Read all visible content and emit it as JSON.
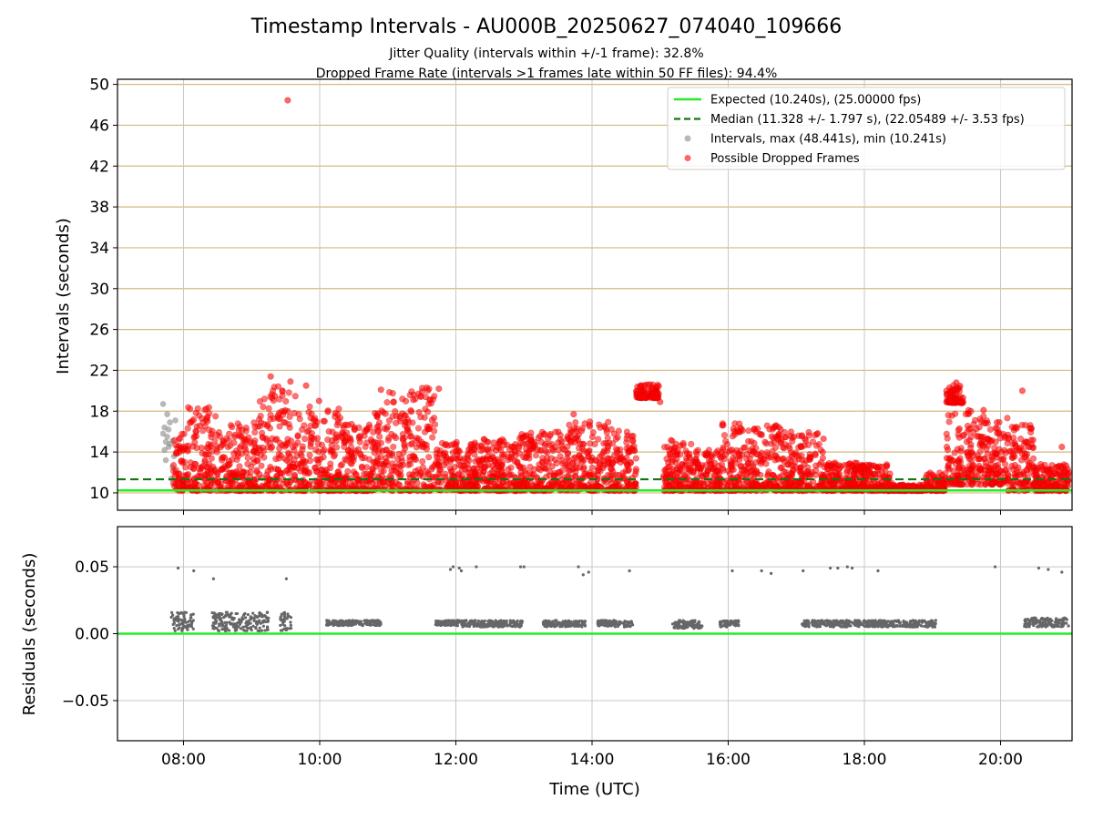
{
  "chart_data": {
    "title": "Timestamp Intervals - AU000B_20250627_074040_109666",
    "subtitles": [
      "Jitter Quality (intervals within +/-1 frame): 32.8%",
      "Dropped Frame Rate (intervals >1 frames late within 50 FF files): 94.4%"
    ],
    "panels": [
      {
        "type": "scatter",
        "ylabel": "Intervals (seconds)",
        "ylim": [
          8.3,
          50.5
        ],
        "yticks": [
          10,
          14,
          18,
          22,
          26,
          30,
          34,
          38,
          42,
          46,
          50
        ],
        "grid": true,
        "hlines_color": "#d4b97a",
        "series": [
          {
            "kind": "line",
            "value": 10.24,
            "color": "#22ee22"
          },
          {
            "kind": "dashed-line",
            "value": 11.328,
            "color": "#117711"
          },
          {
            "kind": "points",
            "color": "#888888",
            "points": [
              [
                7.7,
                18.7
              ],
              [
                7.72,
                16.4
              ],
              [
                7.74,
                15.0
              ],
              [
                7.76,
                17.7
              ],
              [
                7.78,
                16.2
              ],
              [
                7.8,
                14.8
              ],
              [
                7.72,
                14.2
              ],
              [
                7.76,
                15.5
              ],
              [
                7.8,
                16.9
              ],
              [
                7.84,
                15.1
              ],
              [
                7.86,
                13.6
              ],
              [
                7.82,
                11.4
              ],
              [
                7.88,
                17.1
              ],
              [
                7.74,
                13.2
              ],
              [
                7.78,
                14.5
              ],
              [
                7.84,
                12.5
              ],
              [
                7.9,
                10.4
              ],
              [
                7.7,
                15.8
              ],
              [
                18.35,
                10.3
              ],
              [
                18.7,
                10.4
              ]
            ]
          },
          {
            "kind": "points",
            "color": "#ff0000",
            "points": [
              [
                9.53,
                48.44
              ],
              [
                9.28,
                21.4
              ],
              [
                9.57,
                20.9
              ],
              [
                9.34,
                19.5
              ],
              [
                10.9,
                20.1
              ],
              [
                11.75,
                20.2
              ],
              [
                14.72,
                20.5
              ],
              [
                14.85,
                20.6
              ],
              [
                14.95,
                20.4
              ],
              [
                19.25,
                20.3
              ],
              [
                19.35,
                20.8
              ],
              [
                20.32,
                20.0
              ],
              [
                9.8,
                20.5
              ],
              [
                9.99,
                19.0
              ],
              [
                10.23,
                17.8
              ],
              [
                13.73,
                17.7
              ],
              [
                15.0,
                18.9
              ],
              [
                16.38,
                16.2
              ],
              [
                16.7,
                16.6
              ],
              [
                17.4,
                15.3
              ],
              [
                19.45,
                18.9
              ],
              [
                19.75,
                18.1
              ],
              [
                20.45,
                16.3
              ],
              [
                20.9,
                14.5
              ]
            ],
            "clusters": [
              [
                7.85,
                8.05,
                10.2,
                15.8
              ],
              [
                8.05,
                8.5,
                10.2,
                18.5
              ],
              [
                8.5,
                9.1,
                10.2,
                16.9
              ],
              [
                9.1,
                9.4,
                10.2,
                21.2
              ],
              [
                9.4,
                9.65,
                10.2,
                20.5
              ],
              [
                9.65,
                10.4,
                10.2,
                18.5
              ],
              [
                10.4,
                10.8,
                10.2,
                16.8
              ],
              [
                10.8,
                11.3,
                10.2,
                19.9
              ],
              [
                11.3,
                11.7,
                10.2,
                20.3
              ],
              [
                11.7,
                12.3,
                10.2,
                15.0
              ],
              [
                12.3,
                12.9,
                10.2,
                15.3
              ],
              [
                12.9,
                13.6,
                10.2,
                16.0
              ],
              [
                13.6,
                14.3,
                10.2,
                17.0
              ],
              [
                14.3,
                14.65,
                10.2,
                16.1
              ],
              [
                14.65,
                14.98,
                19.3,
                20.6
              ],
              [
                15.05,
                15.5,
                10.2,
                15.3
              ],
              [
                15.5,
                15.9,
                10.2,
                14.2
              ],
              [
                15.9,
                16.4,
                10.2,
                16.8
              ],
              [
                16.4,
                16.9,
                10.2,
                16.6
              ],
              [
                16.9,
                17.4,
                10.2,
                16.0
              ],
              [
                17.4,
                17.9,
                10.2,
                13.0
              ],
              [
                17.9,
                18.4,
                10.2,
                12.8
              ],
              [
                18.4,
                18.9,
                10.2,
                10.8
              ],
              [
                18.9,
                19.2,
                10.2,
                12.0
              ],
              [
                19.2,
                19.45,
                18.8,
                20.6
              ],
              [
                19.2,
                19.6,
                10.8,
                18.2
              ],
              [
                19.6,
                20.1,
                10.8,
                17.5
              ],
              [
                20.1,
                20.5,
                10.2,
                16.8
              ],
              [
                20.5,
                21.0,
                10.2,
                12.8
              ]
            ]
          }
        ],
        "legend": {
          "placement": "top-right",
          "entries": [
            {
              "label": "Expected (10.240s), (25.00000 fps)",
              "marker": "line",
              "color": "#22ee22"
            },
            {
              "label": "Median (11.328 +/- 1.797 s), (22.05489 +/- 3.53 fps)",
              "marker": "dashed-line",
              "color": "#117711"
            },
            {
              "label": "Intervals, max (48.441s), min (10.241s)",
              "marker": "dot",
              "color": "#888888"
            },
            {
              "label": "Possible Dropped Frames",
              "marker": "dot",
              "color": "#ff0000"
            }
          ]
        }
      },
      {
        "type": "scatter",
        "ylabel": "Residuals (seconds)",
        "xlabel": "Time (UTC)",
        "ylim": [
          -0.08,
          0.08
        ],
        "yticks": [
          0.05,
          0.0,
          -0.05
        ],
        "ytick_labels": [
          "0.05",
          "0.00",
          "−0.05"
        ],
        "grid": true,
        "zero_line_color": "#22ee22",
        "points_color": "#666666",
        "points": [
          [
            7.92,
            0.049
          ],
          [
            8.15,
            0.047
          ],
          [
            8.44,
            0.041
          ],
          [
            9.51,
            0.041
          ],
          [
            11.92,
            0.048
          ],
          [
            11.96,
            0.05
          ],
          [
            12.05,
            0.049
          ],
          [
            12.08,
            0.047
          ],
          [
            12.3,
            0.05
          ],
          [
            12.95,
            0.05
          ],
          [
            13.0,
            0.05
          ],
          [
            13.8,
            0.05
          ],
          [
            13.95,
            0.046
          ],
          [
            13.87,
            0.044
          ],
          [
            14.55,
            0.047
          ],
          [
            16.06,
            0.047
          ],
          [
            16.49,
            0.047
          ],
          [
            16.63,
            0.045
          ],
          [
            17.1,
            0.047
          ],
          [
            17.5,
            0.049
          ],
          [
            17.61,
            0.049
          ],
          [
            17.75,
            0.05
          ],
          [
            17.82,
            0.049
          ],
          [
            18.2,
            0.047
          ],
          [
            19.92,
            0.05
          ],
          [
            20.56,
            0.049
          ],
          [
            20.7,
            0.048
          ],
          [
            20.9,
            0.046
          ]
        ],
        "clusters": [
          [
            7.82,
            8.15,
            0.002,
            0.016
          ],
          [
            8.42,
            9.25,
            0.002,
            0.016
          ],
          [
            9.42,
            9.58,
            0.002,
            0.016
          ],
          [
            10.1,
            10.9,
            0.006,
            0.01
          ],
          [
            11.7,
            12.1,
            0.006,
            0.01
          ],
          [
            12.1,
            12.98,
            0.005,
            0.01
          ],
          [
            13.28,
            13.9,
            0.005,
            0.01
          ],
          [
            14.08,
            14.6,
            0.005,
            0.01
          ],
          [
            15.18,
            15.62,
            0.004,
            0.01
          ],
          [
            15.88,
            16.16,
            0.005,
            0.01
          ],
          [
            17.08,
            19.05,
            0.005,
            0.01
          ],
          [
            20.35,
            21.0,
            0.005,
            0.012
          ]
        ],
        "xlim": [
          7.03,
          21.05
        ],
        "xticks": [
          8,
          10,
          12,
          14,
          16,
          18,
          20
        ],
        "xtick_labels": [
          "08:00",
          "10:00",
          "12:00",
          "14:00",
          "16:00",
          "18:00",
          "20:00"
        ]
      }
    ]
  }
}
